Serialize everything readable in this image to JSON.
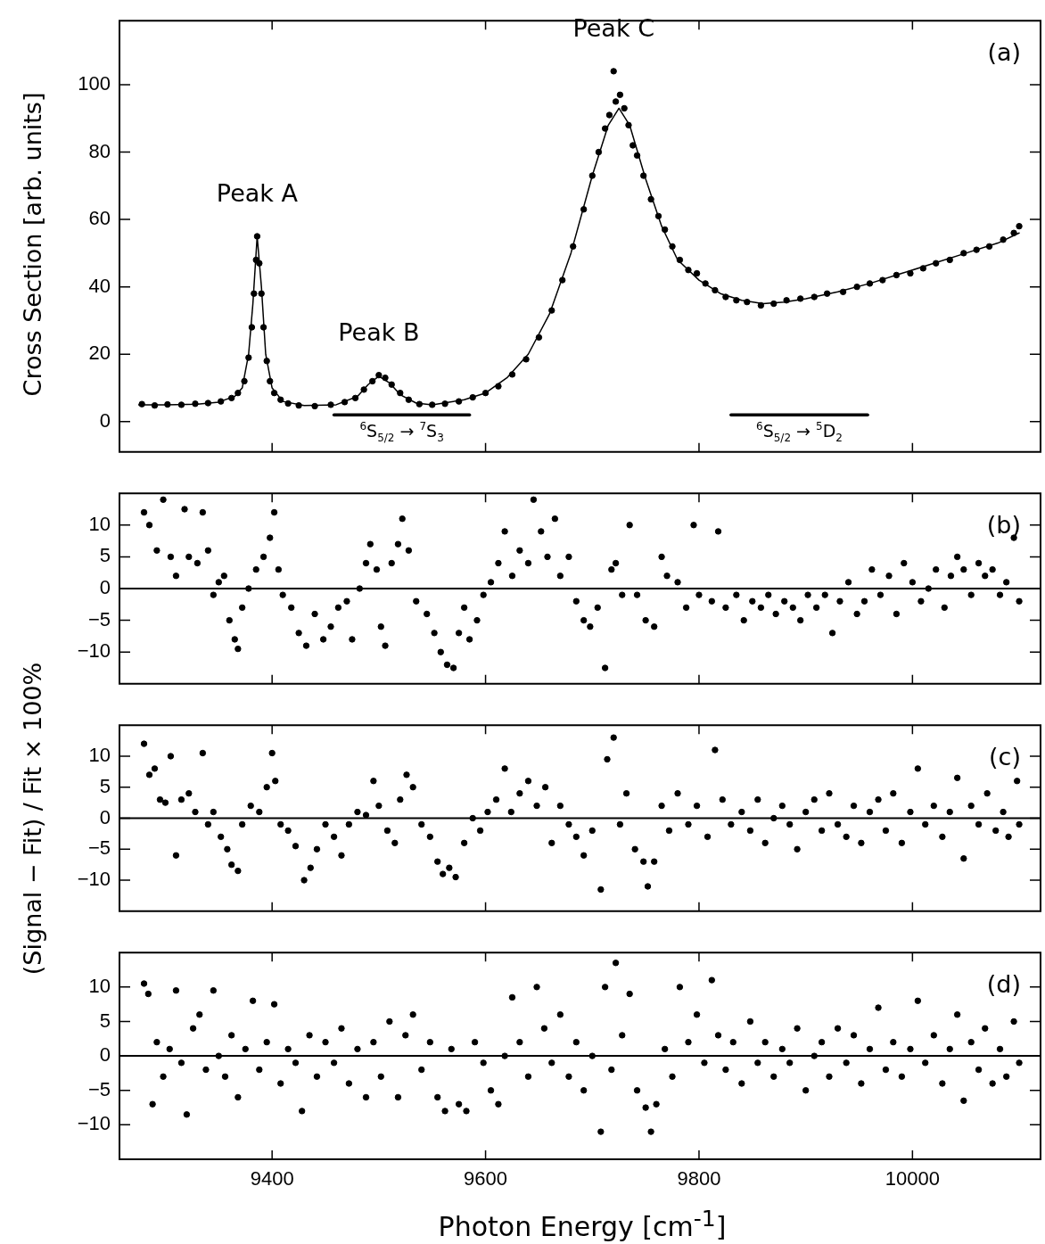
{
  "chart_data": [
    {
      "type": "scatter",
      "ylabel": "Cross Section [arb. units]",
      "xlim": [
        9257,
        10120
      ],
      "xticks": [
        9400,
        9600,
        9800,
        10000
      ],
      "ylim": [
        -9,
        119
      ],
      "yticks": [
        0,
        20,
        40,
        60,
        80,
        100
      ],
      "tick_labels": "y",
      "grid": false,
      "legend": false,
      "marker": "circle",
      "annotations": [
        {
          "text": "Peak A",
          "x": 9386,
          "y": 55
        },
        {
          "text": "Peak B",
          "x": 9500,
          "y": 13.8
        },
        {
          "text": "Peak C",
          "x": 9720,
          "y": 104
        },
        "(a)"
      ],
      "series": [
        {
          "type": "line",
          "name": "$^{6}$S$_{5/2}$ → $^{7}$S$_{3}$",
          "color": "#000000",
          "marker": "none",
          "x": [
            9458,
            9585
          ],
          "values": [
            2,
            2
          ]
        },
        {
          "type": "line",
          "name": "$^{6}$S$_{5/2}$ → $^{5}$D$_{2}$",
          "color": "#000000",
          "marker": "none",
          "x": [
            9830,
            9958
          ],
          "values": [
            2,
            2
          ]
        },
        {
          "type": "scatter",
          "color": "#000000",
          "x": [
            9278,
            9290,
            9302,
            9315,
            9328,
            9340,
            9352,
            9362,
            9368,
            9374,
            9378,
            9381,
            9383,
            9385,
            9386,
            9388,
            9390,
            9392,
            9395,
            9398,
            9402,
            9408,
            9415,
            9425,
            9440,
            9455,
            9468,
            9478,
            9486,
            9494,
            9500,
            9506,
            9512,
            9520,
            9528,
            9538,
            9550,
            9562,
            9575,
            9588,
            9600,
            9612,
            9625,
            9638,
            9650,
            9662,
            9672,
            9682,
            9692,
            9700,
            9706,
            9712,
            9716,
            9720,
            9722,
            9726,
            9730,
            9734,
            9738,
            9742,
            9748,
            9755,
            9762,
            9768,
            9775,
            9782,
            9790,
            9798,
            9806,
            9815,
            9825,
            9835,
            9845,
            9858,
            9870,
            9882,
            9895,
            9908,
            9920,
            9935,
            9948,
            9960,
            9972,
            9985,
            9998,
            10010,
            10022,
            10035,
            10048,
            10060,
            10072,
            10085,
            10095,
            10100
          ],
          "values": [
            5.2,
            4.8,
            5.1,
            5,
            5.3,
            5.5,
            6,
            7,
            8.5,
            12,
            19,
            28,
            38,
            48,
            55,
            47,
            38,
            28,
            18,
            12,
            8.5,
            6.5,
            5.4,
            4.8,
            4.6,
            5,
            5.8,
            7,
            9.5,
            12,
            13.8,
            13,
            11,
            8.5,
            6.5,
            5.2,
            5,
            5.3,
            6,
            7.2,
            8.5,
            10.5,
            14,
            18.5,
            25,
            33,
            42,
            52,
            63,
            73,
            80,
            87,
            91,
            104,
            95,
            97,
            93,
            88,
            82,
            79,
            73,
            66,
            61,
            57,
            52,
            48,
            45,
            44,
            41,
            39,
            37,
            36,
            35.5,
            34.5,
            35,
            36,
            36.5,
            37,
            38,
            38.5,
            40,
            41,
            42,
            43.5,
            44,
            45.5,
            47,
            48,
            50,
            51,
            52,
            54,
            56,
            58
          ]
        },
        {
          "type": "line",
          "color": "#000000",
          "marker": "none",
          "line_style": "solid",
          "x": [
            9275,
            9300,
            9330,
            9350,
            9365,
            9372,
            9378,
            9382,
            9386,
            9390,
            9394,
            9400,
            9410,
            9430,
            9460,
            9480,
            9490,
            9500,
            9510,
            9520,
            9535,
            9550,
            9580,
            9600,
            9620,
            9640,
            9660,
            9680,
            9700,
            9715,
            9725,
            9735,
            9750,
            9765,
            9780,
            9800,
            9820,
            9840,
            9860,
            9880,
            9900,
            9930,
            9960,
            9990,
            10020,
            10050,
            10080,
            10100
          ],
          "values": [
            5,
            5,
            5.2,
            5.8,
            7.5,
            10,
            20,
            35,
            55,
            40,
            20,
            10,
            6,
            4.8,
            5,
            7.5,
            11,
            13.5,
            11.5,
            8,
            5.5,
            5,
            6.5,
            8.5,
            13,
            20,
            32,
            50,
            73,
            88,
            93,
            88,
            72,
            58,
            48,
            42,
            38,
            36,
            35,
            35.5,
            36.5,
            38.5,
            41,
            44,
            47,
            50,
            53,
            56
          ]
        }
      ]
    },
    {
      "type": "scatter",
      "xlim": [
        9257,
        10120
      ],
      "xticks": [
        9400,
        9600,
        9800,
        10000
      ],
      "ylim": [
        -15,
        15
      ],
      "yticks": [
        -10,
        -5,
        0,
        5,
        10
      ],
      "tick_labels": "y",
      "grid": false,
      "legend": false,
      "marker": "circle",
      "annotations": [
        "(b)"
      ],
      "ref_lines": [
        {
          "axis": "y",
          "value": 0
        }
      ],
      "series": [
        {
          "color": "#000000",
          "x": [
            9280,
            9285,
            9292,
            9298,
            9305,
            9310,
            9318,
            9322,
            9330,
            9335,
            9340,
            9345,
            9350,
            9355,
            9360,
            9365,
            9368,
            9372,
            9378,
            9385,
            9392,
            9398,
            9402,
            9406,
            9410,
            9418,
            9425,
            9432,
            9440,
            9448,
            9455,
            9462,
            9470,
            9475,
            9482,
            9488,
            9492,
            9498,
            9502,
            9506,
            9512,
            9518,
            9522,
            9528,
            9535,
            9545,
            9552,
            9558,
            9564,
            9570,
            9575,
            9580,
            9585,
            9592,
            9598,
            9605,
            9612,
            9618,
            9625,
            9632,
            9640,
            9645,
            9652,
            9658,
            9665,
            9670,
            9678,
            9685,
            9692,
            9698,
            9705,
            9712,
            9718,
            9722,
            9728,
            9735,
            9742,
            9750,
            9758,
            9765,
            9770,
            9780,
            9788,
            9795,
            9800,
            9812,
            9818,
            9825,
            9835,
            9842,
            9850,
            9858,
            9865,
            9872,
            9880,
            9888,
            9895,
            9902,
            9910,
            9918,
            9925,
            9932,
            9940,
            9948,
            9955,
            9962,
            9970,
            9978,
            9985,
            9992,
            10000,
            10008,
            10015,
            10022,
            10030,
            10036,
            10042,
            10048,
            10055,
            10062,
            10068,
            10075,
            10082,
            10088,
            10095,
            10100
          ],
          "values": [
            12,
            10,
            6,
            14,
            5,
            2,
            12.5,
            5,
            4,
            12,
            6,
            -1,
            1,
            2,
            -5,
            -8,
            -9.5,
            -3,
            0,
            3,
            5,
            8,
            12,
            3,
            -1,
            -3,
            -7,
            -9,
            -4,
            -8,
            -6,
            -3,
            -2,
            -8,
            0,
            4,
            7,
            3,
            -6,
            -9,
            4,
            7,
            11,
            6,
            -2,
            -4,
            -7,
            -10,
            -12,
            -12.5,
            -7,
            -3,
            -8,
            -5,
            -1,
            1,
            4,
            9,
            2,
            6,
            4,
            14,
            9,
            5,
            11,
            2,
            5,
            -2,
            -5,
            -6,
            -3,
            -12.5,
            3,
            4,
            -1,
            10,
            -1,
            -5,
            -6,
            5,
            2,
            1,
            -3,
            10,
            -1,
            -2,
            9,
            -3,
            -1,
            -5,
            -2,
            -3,
            -1,
            -4,
            -2,
            -3,
            -5,
            -1,
            -3,
            -1,
            -7,
            -2,
            1,
            -4,
            -2,
            3,
            -1,
            2,
            -4,
            4,
            1,
            -2,
            0,
            3,
            -3,
            2,
            5,
            3,
            -1,
            4,
            2,
            3,
            -1,
            1,
            8,
            -2
          ]
        }
      ]
    },
    {
      "type": "scatter",
      "ylabel": "(Signal − Fit) / Fit × 100%",
      "xlim": [
        9257,
        10120
      ],
      "xticks": [
        9400,
        9600,
        9800,
        10000
      ],
      "ylim": [
        -15,
        15
      ],
      "yticks": [
        -10,
        -5,
        0,
        5,
        10
      ],
      "tick_labels": "y",
      "grid": false,
      "legend": false,
      "marker": "circle",
      "annotations": [
        "(c)"
      ],
      "ref_lines": [
        {
          "axis": "y",
          "value": 0
        }
      ],
      "series": [
        {
          "color": "#000000",
          "x": [
            9280,
            9285,
            9290,
            9295,
            9300,
            9305,
            9310,
            9315,
            9322,
            9328,
            9335,
            9340,
            9345,
            9352,
            9358,
            9362,
            9368,
            9372,
            9380,
            9388,
            9395,
            9400,
            9403,
            9408,
            9415,
            9422,
            9430,
            9436,
            9442,
            9450,
            9458,
            9465,
            9472,
            9480,
            9488,
            9495,
            9500,
            9508,
            9515,
            9520,
            9526,
            9532,
            9540,
            9548,
            9555,
            9560,
            9566,
            9572,
            9580,
            9588,
            9595,
            9602,
            9610,
            9618,
            9624,
            9632,
            9640,
            9648,
            9656,
            9662,
            9670,
            9678,
            9685,
            9692,
            9700,
            9708,
            9714,
            9720,
            9726,
            9732,
            9740,
            9748,
            9752,
            9758,
            9765,
            9772,
            9780,
            9790,
            9798,
            9808,
            9815,
            9822,
            9830,
            9840,
            9848,
            9855,
            9862,
            9870,
            9878,
            9885,
            9892,
            9900,
            9908,
            9915,
            9922,
            9930,
            9938,
            9945,
            9952,
            9960,
            9968,
            9975,
            9982,
            9990,
            9998,
            10005,
            10012,
            10020,
            10028,
            10035,
            10042,
            10048,
            10055,
            10062,
            10070,
            10078,
            10085,
            10090,
            10098,
            10100
          ],
          "values": [
            12,
            7,
            8,
            3,
            2.5,
            10,
            -6,
            3,
            4,
            1,
            10.5,
            -1,
            1,
            -3,
            -5,
            -7.5,
            -8.5,
            -1,
            2,
            1,
            5,
            10.5,
            6,
            -1,
            -2,
            -4.5,
            -10,
            -8,
            -5,
            -1,
            -3,
            -6,
            -1,
            1,
            0.5,
            6,
            2,
            -2,
            -4,
            3,
            7,
            5,
            -1,
            -3,
            -7,
            -9,
            -8,
            -9.5,
            -4,
            0,
            -2,
            1,
            3,
            8,
            1,
            4,
            6,
            2,
            5,
            -4,
            2,
            -1,
            -3,
            -6,
            -2,
            -11.5,
            9.5,
            13,
            -1,
            4,
            -5,
            -7,
            -11,
            -7,
            2,
            -2,
            4,
            -1,
            2,
            -3,
            11,
            3,
            -1,
            1,
            -2,
            3,
            -4,
            0,
            2,
            -1,
            -5,
            1,
            3,
            -2,
            4,
            -1,
            -3,
            2,
            -4,
            1,
            3,
            -2,
            4,
            -4,
            1,
            8,
            -1,
            2,
            -3,
            1,
            6.5,
            -6.5,
            2,
            -1,
            4,
            -2,
            1,
            -3,
            6,
            -1
          ]
        }
      ]
    },
    {
      "type": "scatter",
      "xlabel": "Photon Energy [cm$^{-1}$]",
      "xlim": [
        9257,
        10120
      ],
      "xticks": [
        9400,
        9600,
        9800,
        10000
      ],
      "ylim": [
        -15,
        15
      ],
      "yticks": [
        -10,
        -5,
        0,
        5,
        10
      ],
      "grid": false,
      "legend": false,
      "marker": "circle",
      "annotations": [
        "(d)"
      ],
      "ref_lines": [
        {
          "axis": "y",
          "value": 0
        }
      ],
      "series": [
        {
          "color": "#000000",
          "x": [
            9280,
            9284,
            9288,
            9292,
            9298,
            9304,
            9310,
            9315,
            9320,
            9326,
            9332,
            9338,
            9345,
            9350,
            9356,
            9362,
            9368,
            9375,
            9382,
            9388,
            9395,
            9402,
            9408,
            9415,
            9422,
            9428,
            9435,
            9442,
            9450,
            9458,
            9465,
            9472,
            9480,
            9488,
            9495,
            9502,
            9510,
            9518,
            9525,
            9532,
            9540,
            9548,
            9555,
            9562,
            9568,
            9575,
            9582,
            9590,
            9598,
            9605,
            9612,
            9618,
            9625,
            9632,
            9640,
            9648,
            9655,
            9662,
            9670,
            9678,
            9685,
            9692,
            9700,
            9708,
            9712,
            9718,
            9722,
            9728,
            9735,
            9742,
            9750,
            9755,
            9760,
            9768,
            9775,
            9782,
            9790,
            9798,
            9805,
            9812,
            9818,
            9825,
            9832,
            9840,
            9848,
            9855,
            9862,
            9870,
            9878,
            9885,
            9892,
            9900,
            9908,
            9915,
            9922,
            9930,
            9938,
            9945,
            9952,
            9960,
            9968,
            9975,
            9982,
            9990,
            9998,
            10005,
            10012,
            10020,
            10028,
            10035,
            10042,
            10048,
            10055,
            10062,
            10068,
            10075,
            10082,
            10088,
            10095,
            10100
          ],
          "values": [
            10.5,
            9,
            -7,
            2,
            -3,
            1,
            9.5,
            -1,
            -8.5,
            4,
            6,
            -2,
            9.5,
            0,
            -3,
            3,
            -6,
            1,
            8,
            -2,
            2,
            7.5,
            -4,
            1,
            -1,
            -8,
            3,
            -3,
            2,
            -1,
            4,
            -4,
            1,
            -6,
            2,
            -3,
            5,
            -6,
            3,
            6,
            -2,
            2,
            -6,
            -8,
            1,
            -7,
            -8,
            2,
            -1,
            -5,
            -7,
            0,
            8.5,
            2,
            -3,
            10,
            4,
            -1,
            6,
            -3,
            2,
            -5,
            0,
            -11,
            10,
            -2,
            13.5,
            3,
            9,
            -5,
            -7.5,
            -11,
            -7,
            1,
            -3,
            10,
            2,
            6,
            -1,
            11,
            3,
            -2,
            2,
            -4,
            5,
            -1,
            2,
            -3,
            1,
            -1,
            4,
            -5,
            0,
            2,
            -3,
            4,
            -1,
            3,
            -4,
            1,
            7,
            -2,
            2,
            -3,
            1,
            8,
            -1,
            3,
            -4,
            1,
            6,
            -6.5,
            2,
            -2,
            4,
            -4,
            1,
            -3,
            5,
            -1
          ]
        }
      ]
    }
  ]
}
